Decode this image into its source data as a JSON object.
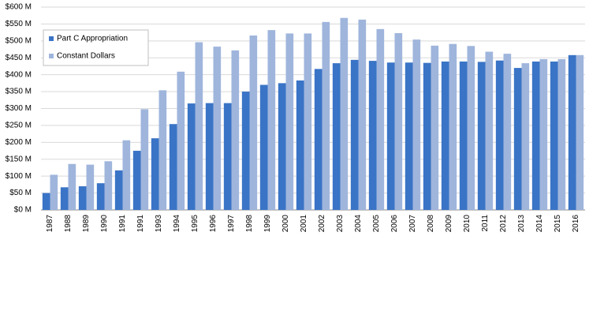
{
  "chart_data": {
    "type": "bar",
    "categories": [
      "1987",
      "1988",
      "1989",
      "1990",
      "1991",
      "1991",
      "1993",
      "1994",
      "1995",
      "1996",
      "1997",
      "1998",
      "1999",
      "2000",
      "2001",
      "2002",
      "2003",
      "2004",
      "2005",
      "2006",
      "2007",
      "2008",
      "2009",
      "2010",
      "2011",
      "2012",
      "2013",
      "2014",
      "2015",
      "2016"
    ],
    "series": [
      {
        "name": "Part C Appropriation",
        "color": "#3a74c6",
        "values": [
          50,
          67,
          70,
          79,
          117,
          175,
          212,
          254,
          315,
          316,
          316,
          350,
          370,
          375,
          383,
          417,
          434,
          444,
          441,
          436,
          436,
          435,
          439,
          439,
          438,
          442,
          420,
          439,
          439,
          458
        ]
      },
      {
        "name": "Constant Dollars",
        "color": "#9fb5dc",
        "values": [
          104,
          136,
          134,
          144,
          206,
          298,
          354,
          409,
          496,
          483,
          472,
          516,
          532,
          522,
          522,
          556,
          568,
          563,
          535,
          523,
          504,
          486,
          491,
          485,
          468,
          462,
          434,
          446,
          446,
          458
        ]
      }
    ],
    "ylim": [
      0,
      600
    ],
    "yticks": [
      {
        "value": 0,
        "label": "$0 M"
      },
      {
        "value": 50,
        "label": "$50 M"
      },
      {
        "value": 100,
        "label": "$100 M"
      },
      {
        "value": 150,
        "label": "$150 M"
      },
      {
        "value": 200,
        "label": "$200 M"
      },
      {
        "value": 250,
        "label": "$250 M"
      },
      {
        "value": 300,
        "label": "$300 M"
      },
      {
        "value": 350,
        "label": "$350 M"
      },
      {
        "value": 400,
        "label": "$400 M"
      },
      {
        "value": 450,
        "label": "$450 M"
      },
      {
        "value": 500,
        "label": "$500 M"
      },
      {
        "value": 550,
        "label": "$550 M"
      },
      {
        "value": 600,
        "label": "$600 M"
      }
    ],
    "grid": true,
    "legend": "top-left"
  }
}
